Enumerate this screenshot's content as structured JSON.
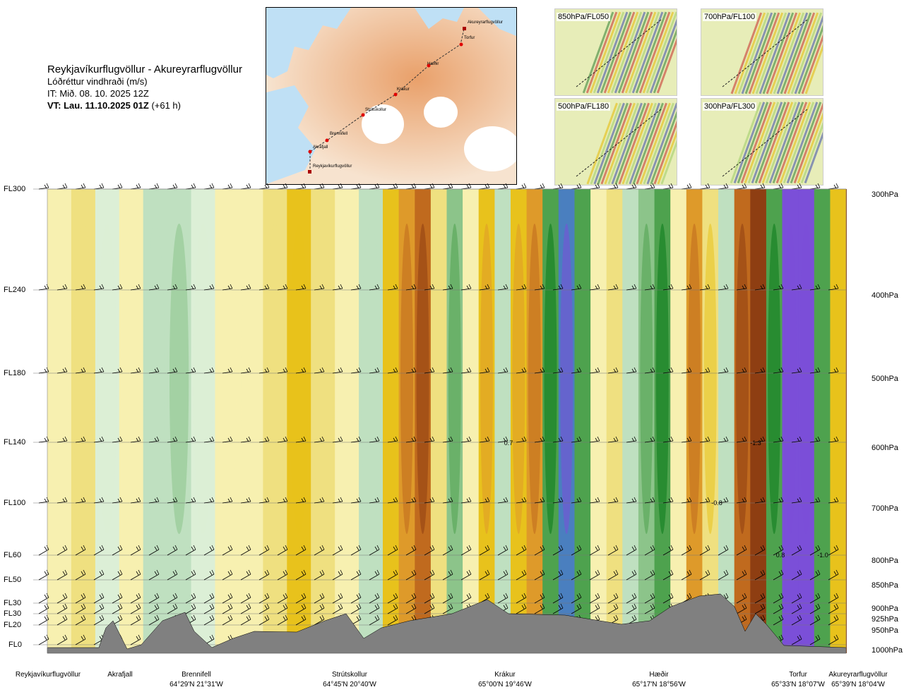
{
  "header": {
    "route": "Reykjavíkurflugvöllur - Akureyrarflugvöllur",
    "variable": "Lóðréttur vindhraði (m/s)",
    "issue_time": "IT: Mið. 08. 10. 2025 12Z",
    "valid_time_bold": "VT: Lau. 11.10.2025 01Z",
    "valid_time_offset": "(+61 h)"
  },
  "route_map": {
    "waypoints": [
      "Akureyrarflugvöllur",
      "Torfur",
      "Hæðir",
      "Krákur",
      "Strútskollur",
      "Brennifell",
      "Akrafjall",
      "Reykjavíkurflugvöllur"
    ]
  },
  "thumbnails": [
    {
      "label": "850hPa/FL050"
    },
    {
      "label": "700hPa/FL100"
    },
    {
      "label": "500hPa/FL180"
    },
    {
      "label": "300hPa/FL300"
    }
  ],
  "chart_data": {
    "type": "heatmap",
    "title": "Lóðréttur vindhraði (m/s)",
    "levels": [
      {
        "fl": "FL300",
        "hpa": "300hPa"
      },
      {
        "fl": "FL240",
        "hpa": "400hPa"
      },
      {
        "fl": "FL180",
        "hpa": "500hPa"
      },
      {
        "fl": "FL140",
        "hpa": "600hPa"
      },
      {
        "fl": "FL100",
        "hpa": "700hPa"
      },
      {
        "fl": "FL60",
        "hpa": "800hPa"
      },
      {
        "fl": "FL50",
        "hpa": "850hPa"
      },
      {
        "fl": "FL30",
        "hpa": "900hPa"
      },
      {
        "fl": "FL30",
        "hpa": "925hPa"
      },
      {
        "fl": "FL20",
        "hpa": "950hPa"
      },
      {
        "fl": "FL0",
        "hpa": "1000hPa"
      }
    ],
    "waypoints": [
      {
        "name": "Reykjavíkurflugvöllur",
        "coord": ""
      },
      {
        "name": "Akrafjall",
        "coord": ""
      },
      {
        "name": "Brennifell",
        "coord": "64°29'N 21°31'W"
      },
      {
        "name": "Strútskollur",
        "coord": "64°45'N 20°40'W"
      },
      {
        "name": "Krákur",
        "coord": "65°00'N 19°46'W"
      },
      {
        "name": "Hæðir",
        "coord": "65°17'N 18°56'W"
      },
      {
        "name": "Torfur",
        "coord": "65°33'N 18°07'W"
      },
      {
        "name": "Akureyrarflugvöllur",
        "coord": "65°39'N 18°04'W"
      }
    ],
    "annotations": [
      "0.7",
      "-1.3",
      "-0.8",
      "0.8",
      "-1.0"
    ],
    "bands": [
      {
        "x": 0.0,
        "v": 0.1
      },
      {
        "x": 0.03,
        "v": 0.15
      },
      {
        "x": 0.06,
        "v": -0.05
      },
      {
        "x": 0.09,
        "v": 0.05
      },
      {
        "x": 0.12,
        "v": -0.1
      },
      {
        "x": 0.15,
        "v": -0.2
      },
      {
        "x": 0.18,
        "v": -0.05
      },
      {
        "x": 0.21,
        "v": 0.1
      },
      {
        "x": 0.24,
        "v": 0.05
      },
      {
        "x": 0.27,
        "v": 0.2
      },
      {
        "x": 0.3,
        "v": 0.3
      },
      {
        "x": 0.33,
        "v": 0.15
      },
      {
        "x": 0.36,
        "v": 0.05
      },
      {
        "x": 0.39,
        "v": -0.1
      },
      {
        "x": 0.42,
        "v": 0.3
      },
      {
        "x": 0.44,
        "v": 0.5
      },
      {
        "x": 0.46,
        "v": 0.6
      },
      {
        "x": 0.48,
        "v": 0.2
      },
      {
        "x": 0.5,
        "v": -0.3
      },
      {
        "x": 0.52,
        "v": 0.1
      },
      {
        "x": 0.54,
        "v": 0.35
      },
      {
        "x": 0.56,
        "v": -0.15
      },
      {
        "x": 0.58,
        "v": 0.4
      },
      {
        "x": 0.6,
        "v": 0.55
      },
      {
        "x": 0.62,
        "v": -0.5
      },
      {
        "x": 0.64,
        "v": -0.9
      },
      {
        "x": 0.66,
        "v": -0.4
      },
      {
        "x": 0.68,
        "v": 0.1
      },
      {
        "x": 0.7,
        "v": 0.2
      },
      {
        "x": 0.72,
        "v": -0.1
      },
      {
        "x": 0.74,
        "v": -0.3
      },
      {
        "x": 0.76,
        "v": -0.55
      },
      {
        "x": 0.78,
        "v": 0.1
      },
      {
        "x": 0.8,
        "v": 0.5
      },
      {
        "x": 0.82,
        "v": 0.25
      },
      {
        "x": 0.84,
        "v": -0.1
      },
      {
        "x": 0.86,
        "v": 0.6
      },
      {
        "x": 0.88,
        "v": 0.8
      },
      {
        "x": 0.9,
        "v": -0.5
      },
      {
        "x": 0.92,
        "v": -1.1
      },
      {
        "x": 0.94,
        "v": -1.3
      },
      {
        "x": 0.96,
        "v": -0.4
      },
      {
        "x": 0.98,
        "v": 0.3
      },
      {
        "x": 1.0,
        "v": 0.9
      }
    ]
  },
  "colors": {
    "terrain": "#808080",
    "sea": "#bfe0f5"
  }
}
